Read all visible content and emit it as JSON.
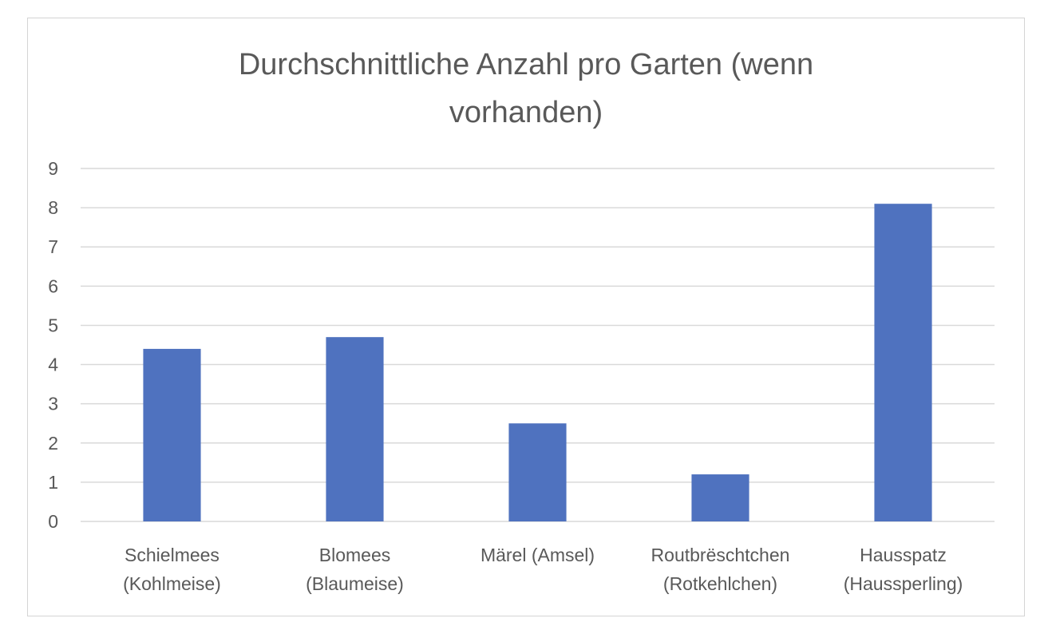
{
  "chart_data": {
    "type": "bar",
    "title": "Durchschnittliche Anzahl pro Garten (wenn vorhanden)",
    "title_lines": [
      "Durchschnittliche Anzahl pro Garten (wenn",
      "vorhanden)"
    ],
    "categories": [
      [
        "Schielmees",
        "(Kohlmeise)"
      ],
      [
        "Blomees",
        "(Blaumeise)"
      ],
      [
        "Märel (Amsel)"
      ],
      [
        "Routbrëschtchen",
        "(Rotkehlchen)"
      ],
      [
        "Hausspatz",
        "(Haussperling)"
      ]
    ],
    "values": [
      4.4,
      4.7,
      2.5,
      1.2,
      8.1
    ],
    "ylim": [
      0,
      9
    ],
    "yticks": [
      "0",
      "1",
      "2",
      "3",
      "4",
      "5",
      "6",
      "7",
      "8",
      "9"
    ],
    "grid": true,
    "legend": "none",
    "bar_color": "#4f72bf",
    "xlabel": "",
    "ylabel": ""
  }
}
